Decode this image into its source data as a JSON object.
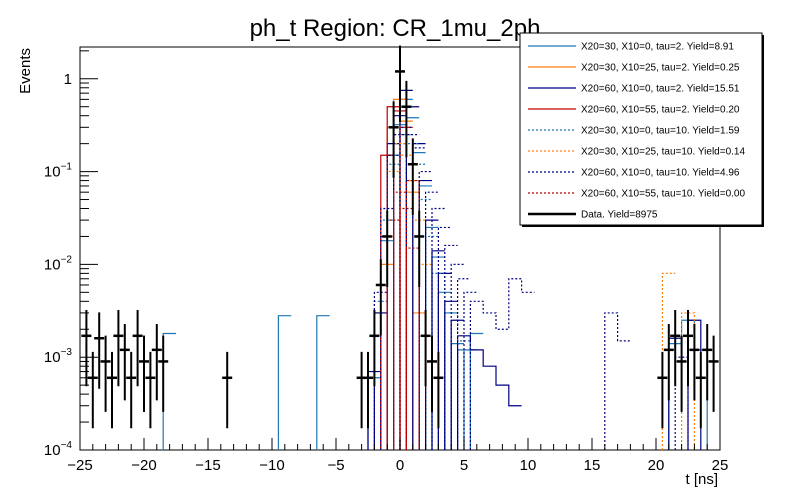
{
  "chart_data": {
    "type": "histogram",
    "title": "ph_t Region: CR_1mu_2ph",
    "xlabel": "t [ns]",
    "ylabel": "Events",
    "xlim": [
      -25,
      25
    ],
    "ylim": [
      0.0001,
      2.2
    ],
    "yscale": "log",
    "x_ticks": [
      -25,
      -20,
      -15,
      -10,
      -5,
      0,
      5,
      10,
      15,
      20,
      25
    ],
    "x_tick_labels": [
      "−25",
      "−20",
      "−15",
      "−10",
      "−5",
      "0",
      "5",
      "10",
      "15",
      "20",
      "25"
    ],
    "y_ticks": [
      {
        "value": 0.0001,
        "base": "10",
        "exp": "−4"
      },
      {
        "value": 0.001,
        "base": "10",
        "exp": "−3"
      },
      {
        "value": 0.01,
        "base": "10",
        "exp": "−2"
      },
      {
        "value": 0.1,
        "base": "10",
        "exp": "−1"
      },
      {
        "value": 1,
        "base": "1",
        "exp": ""
      }
    ],
    "bin_width": 1,
    "legend_position": "top-right",
    "series": [
      {
        "name": "X20=30, X10=0, tau=2. Yield=8.91",
        "color": "#1f77b4",
        "style": "solid",
        "bins": [
          [
            -18,
            0.0018
          ],
          [
            -9,
            0.0028
          ],
          [
            -6,
            0.0028
          ],
          [
            -2,
            0.0006
          ],
          [
            -1.5,
            0.003
          ],
          [
            -1,
            0.018
          ],
          [
            -0.5,
            0.15
          ],
          [
            0,
            0.32
          ],
          [
            0.5,
            0.6
          ],
          [
            1,
            0.38
          ],
          [
            1.5,
            0.16
          ],
          [
            2,
            0.07
          ],
          [
            2.5,
            0.025
          ],
          [
            3,
            0.012
          ],
          [
            3.5,
            0.005
          ],
          [
            4,
            0.003
          ],
          [
            4.5,
            0.0014
          ],
          [
            5,
            0.0012
          ],
          [
            5.5,
            0.0012
          ],
          [
            6,
            0.0018
          ],
          [
            21.5,
            0.0014
          ],
          [
            22.5,
            0.0025
          ],
          [
            23.5,
            0.0012
          ]
        ]
      },
      {
        "name": "X20=30, X10=25, tau=2. Yield=0.25",
        "color": "#ff7f0e",
        "style": "solid",
        "bins": [
          [
            -1,
            0.01
          ],
          [
            -0.5,
            0.3
          ],
          [
            0,
            0.6
          ],
          [
            0.5,
            0.35
          ],
          [
            1,
            0.06
          ],
          [
            1.5,
            0.003
          ]
        ]
      },
      {
        "name": "X20=60, X10=0, tau=2. Yield=15.51",
        "color": "#000080",
        "style": "solid",
        "bins": [
          [
            -2,
            0.0007
          ],
          [
            -1.5,
            0.003
          ],
          [
            -1,
            0.02
          ],
          [
            -0.5,
            0.2
          ],
          [
            0,
            0.4
          ],
          [
            0.5,
            0.75
          ],
          [
            1,
            0.5
          ],
          [
            1.5,
            0.2
          ],
          [
            2,
            0.08
          ],
          [
            2.5,
            0.03
          ],
          [
            3,
            0.014
          ],
          [
            3.5,
            0.008
          ],
          [
            4,
            0.004
          ],
          [
            4.5,
            0.0025
          ],
          [
            5,
            0.0017
          ],
          [
            6,
            0.0012
          ],
          [
            7,
            0.0008
          ],
          [
            8,
            0.0005
          ],
          [
            9,
            0.0003
          ],
          [
            21.5,
            0.0016
          ],
          [
            23,
            0.0025
          ]
        ]
      },
      {
        "name": "X20=60, X10=55, tau=2. Yield=0.20",
        "color": "#c00000",
        "style": "solid",
        "bins": [
          [
            -1,
            0.15
          ],
          [
            -0.5,
            0.5
          ],
          [
            0,
            0.45
          ],
          [
            0.5,
            0.3
          ],
          [
            1,
            0.08
          ]
        ]
      },
      {
        "name": "X20=30, X10=0, tau=10. Yield=1.59",
        "color": "#1f77b4",
        "style": "dotted",
        "bins": [
          [
            -1.5,
            0.004
          ],
          [
            -1,
            0.03
          ],
          [
            -0.5,
            0.12
          ],
          [
            0,
            0.2
          ],
          [
            0.5,
            0.25
          ],
          [
            1,
            0.2
          ],
          [
            1.5,
            0.12
          ],
          [
            2,
            0.05
          ],
          [
            2.5,
            0.02
          ],
          [
            3,
            0.008
          ],
          [
            4,
            0.003
          ],
          [
            5,
            0.0015
          ]
        ]
      },
      {
        "name": "X20=30, X10=25, tau=10. Yield=0.14",
        "color": "#ff7f0e",
        "style": "dotted",
        "bins": [
          [
            -1,
            0.02
          ],
          [
            -0.5,
            0.1
          ],
          [
            0,
            0.2
          ],
          [
            0.5,
            0.15
          ],
          [
            1,
            0.08
          ],
          [
            1.5,
            0.03
          ],
          [
            2,
            0.01
          ],
          [
            21,
            0.008
          ],
          [
            22.5,
            0.003
          ]
        ]
      },
      {
        "name": "X20=60, X10=0, tau=10. Yield=4.96",
        "color": "#000080",
        "style": "dotted",
        "bins": [
          [
            -1.5,
            0.005
          ],
          [
            -1,
            0.04
          ],
          [
            -0.5,
            0.15
          ],
          [
            0,
            0.25
          ],
          [
            0.5,
            0.3
          ],
          [
            1,
            0.25
          ],
          [
            1.5,
            0.18
          ],
          [
            2,
            0.1
          ],
          [
            2.5,
            0.06
          ],
          [
            3,
            0.04
          ],
          [
            3.5,
            0.025
          ],
          [
            4,
            0.016
          ],
          [
            4.5,
            0.01
          ],
          [
            5,
            0.007
          ],
          [
            5.5,
            0.005
          ],
          [
            6,
            0.004
          ],
          [
            7,
            0.003
          ],
          [
            8,
            0.002
          ],
          [
            9,
            0.007
          ],
          [
            10,
            0.005
          ],
          [
            16.5,
            0.003
          ],
          [
            17.5,
            0.0015
          ],
          [
            22,
            0.001
          ]
        ]
      },
      {
        "name": "X20=60, X10=55, tau=10. Yield=0.00",
        "color": "#c00000",
        "style": "dotted",
        "bins": [
          [
            -0.5,
            0.03
          ],
          [
            0,
            0.06
          ],
          [
            0.5,
            0.04
          ],
          [
            1,
            0.015
          ]
        ]
      }
    ],
    "data_series": {
      "name": "Data. Yield=8975",
      "color": "#000000",
      "points": [
        [
          -24.5,
          0.0017
        ],
        [
          -24,
          0.0006
        ],
        [
          -23.5,
          0.0016
        ],
        [
          -23,
          0.0009
        ],
        [
          -22.5,
          0.0006
        ],
        [
          -22,
          0.0017
        ],
        [
          -21.5,
          0.0012
        ],
        [
          -21,
          0.0006
        ],
        [
          -20.5,
          0.0017
        ],
        [
          -20,
          0.0009
        ],
        [
          -19.5,
          0.0006
        ],
        [
          -19,
          0.0012
        ],
        [
          -18.5,
          0.0009
        ],
        [
          -13.5,
          0.0006
        ],
        [
          -3,
          0.0006
        ],
        [
          -2.5,
          0.0006
        ],
        [
          -2,
          0.0017
        ],
        [
          -1.5,
          0.006
        ],
        [
          -1,
          0.02
        ],
        [
          -0.5,
          0.3
        ],
        [
          0,
          1.2
        ],
        [
          0.5,
          0.5
        ],
        [
          1,
          0.12
        ],
        [
          1.5,
          0.02
        ],
        [
          2,
          0.0017
        ],
        [
          2.5,
          0.0009
        ],
        [
          3,
          0.0006
        ],
        [
          20.5,
          0.0006
        ],
        [
          21,
          0.0012
        ],
        [
          21.5,
          0.0017
        ],
        [
          22,
          0.0009
        ],
        [
          22.5,
          0.0017
        ],
        [
          23,
          0.0012
        ],
        [
          23.5,
          0.0006
        ],
        [
          24,
          0.0012
        ],
        [
          24.5,
          0.0009
        ]
      ]
    }
  }
}
